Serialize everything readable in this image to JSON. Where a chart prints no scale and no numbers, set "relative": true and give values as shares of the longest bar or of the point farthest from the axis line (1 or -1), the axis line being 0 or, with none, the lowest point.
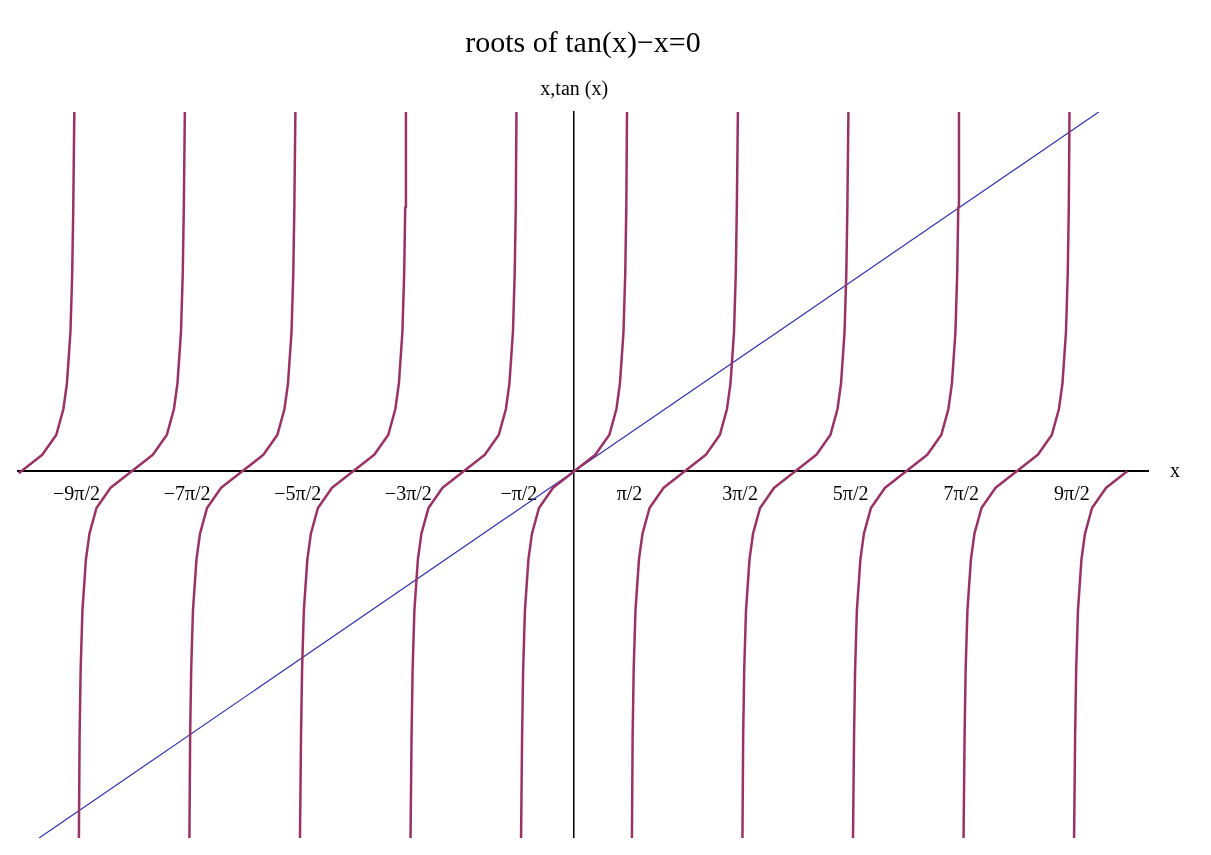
{
  "chart_data": {
    "type": "line",
    "title": "roots of tan(x)−x=0",
    "xlabel": "x",
    "ylabel": "x,tan (x)",
    "relative": true,
    "grid": false,
    "legend": false,
    "marker": "none",
    "line_style": "solid",
    "xlim": [
      -15.8,
      16.3
    ],
    "xticks": [
      {
        "value": -14.137,
        "label": "−9π/2"
      },
      {
        "value": -10.996,
        "label": "−7π/2"
      },
      {
        "value": -7.854,
        "label": "−5π/2"
      },
      {
        "value": -4.712,
        "label": "−3π/2"
      },
      {
        "value": -1.571,
        "label": "−π/2"
      },
      {
        "value": 1.571,
        "label": "π/2"
      },
      {
        "value": 4.712,
        "label": "3π/2"
      },
      {
        "value": 7.854,
        "label": "5π/2"
      },
      {
        "value": 10.996,
        "label": "7π/2"
      },
      {
        "value": 14.137,
        "label": "9π/2"
      }
    ],
    "series": [
      {
        "color": "#993366",
        "x": [
          -15.78,
          -15.11,
          -14.71,
          -14.51,
          -14.41,
          -14.31,
          -14.26,
          -14.23,
          -14.2,
          -14.137,
          -14.07,
          -14.05,
          -14.02,
          -13.97,
          -13.87,
          -13.77,
          -13.57,
          -13.17,
          -12.57,
          -11.97,
          -11.57,
          -11.37,
          -11.27,
          -11.17,
          -11.12,
          -11.09,
          -11.06,
          -10.996,
          -10.93,
          -10.91,
          -10.88,
          -10.83,
          -10.73,
          -10.63,
          -10.43,
          -10.03,
          -9.43,
          -8.83,
          -8.43,
          -8.23,
          -8.13,
          -8.03,
          -7.98,
          -7.95,
          -7.92,
          -7.854,
          -7.79,
          -7.76,
          -7.73,
          -7.68,
          -7.58,
          -7.48,
          -7.28,
          -6.88,
          -6.28,
          -5.68,
          -5.28,
          -5.08,
          -4.98,
          -4.88,
          -4.83,
          -4.8,
          -4.78,
          -4.712,
          -4.65,
          -4.62,
          -4.59,
          -4.54,
          -4.44,
          -4.34,
          -4.14,
          -3.74,
          -3.14,
          -2.54,
          -2.14,
          -1.94,
          -1.84,
          -1.74,
          -1.69,
          -1.66,
          -1.64,
          -1.571,
          -1.51,
          -1.48,
          -1.45,
          -1.4,
          -1.3,
          -1.2,
          -1.0,
          -0.6,
          0,
          0.6,
          1.0,
          1.2,
          1.3,
          1.4,
          1.45,
          1.48,
          1.5,
          1.571,
          1.64,
          1.66,
          1.69,
          1.74,
          1.84,
          1.94,
          2.14,
          2.54,
          3.14,
          3.74,
          4.14,
          4.34,
          4.44,
          4.54,
          4.59,
          4.62,
          4.65,
          4.712,
          4.78,
          4.8,
          4.83,
          4.88,
          4.98,
          5.08,
          5.28,
          5.68,
          6.28,
          6.88,
          7.28,
          7.48,
          7.58,
          7.68,
          7.73,
          7.76,
          7.79,
          7.854,
          7.92,
          7.95,
          7.98,
          8.03,
          8.13,
          8.23,
          8.43,
          8.83,
          9.43,
          10.03,
          10.43,
          10.63,
          10.73,
          10.83,
          10.88,
          10.91,
          10.93,
          10.996,
          11.06,
          11.09,
          11.12,
          11.17,
          11.27,
          11.37,
          11.57,
          11.97,
          12.57,
          13.17,
          13.57,
          13.77,
          13.87,
          13.97,
          14.02,
          14.05,
          14.07,
          14.137,
          14.2,
          14.23,
          14.26,
          14.31,
          14.41,
          14.51,
          14.71,
          15.11,
          15.71
        ],
        "values": [
          -0.005,
          0.045,
          0.1,
          0.17,
          0.24,
          0.38,
          0.54,
          0.72,
          0.98,
          null,
          -1,
          -0.72,
          -0.54,
          -0.38,
          -0.24,
          -0.17,
          -0.1,
          -0.045,
          0,
          0.045,
          0.1,
          0.17,
          0.24,
          0.38,
          0.54,
          0.72,
          0.98,
          null,
          -1,
          -0.72,
          -0.54,
          -0.38,
          -0.24,
          -0.17,
          -0.1,
          -0.045,
          0,
          0.045,
          0.1,
          0.17,
          0.24,
          0.38,
          0.54,
          0.72,
          0.98,
          null,
          -1,
          -0.72,
          -0.54,
          -0.38,
          -0.24,
          -0.17,
          -0.1,
          -0.045,
          0,
          0.045,
          0.1,
          0.17,
          0.24,
          0.38,
          0.54,
          0.72,
          0.98,
          null,
          -1,
          -0.72,
          -0.54,
          -0.38,
          -0.24,
          -0.17,
          -0.1,
          -0.045,
          0,
          0.045,
          0.1,
          0.17,
          0.24,
          0.38,
          0.54,
          0.72,
          0.98,
          null,
          -1,
          -0.72,
          -0.54,
          -0.38,
          -0.24,
          -0.17,
          -0.1,
          -0.045,
          0,
          0.045,
          0.1,
          0.17,
          0.24,
          0.38,
          0.54,
          0.72,
          0.98,
          null,
          -1,
          -0.72,
          -0.54,
          -0.38,
          -0.24,
          -0.17,
          -0.1,
          -0.045,
          0,
          0.045,
          0.1,
          0.17,
          0.24,
          0.38,
          0.54,
          0.72,
          0.98,
          null,
          -1,
          -0.72,
          -0.54,
          -0.38,
          -0.24,
          -0.17,
          -0.1,
          -0.045,
          0,
          0.045,
          0.1,
          0.17,
          0.24,
          0.38,
          0.54,
          0.72,
          0.98,
          null,
          -1,
          -0.72,
          -0.54,
          -0.38,
          -0.24,
          -0.17,
          -0.1,
          -0.045,
          0,
          0.045,
          0.1,
          0.17,
          0.24,
          0.38,
          0.54,
          0.72,
          0.98,
          null,
          -1,
          -0.72,
          -0.54,
          -0.38,
          -0.24,
          -0.17,
          -0.1,
          -0.045,
          0,
          0.045,
          0.1,
          0.17,
          0.24,
          0.38,
          0.54,
          0.72,
          0.98,
          null,
          -1,
          -0.72,
          -0.54,
          -0.38,
          -0.24,
          -0.17,
          -0.1,
          -0.045,
          0
        ]
      },
      {
        "color": "#3333aa",
        "x": [
          -15.2,
          0,
          14.9
        ],
        "values": [
          -1,
          0,
          0.98
        ]
      }
    ]
  }
}
